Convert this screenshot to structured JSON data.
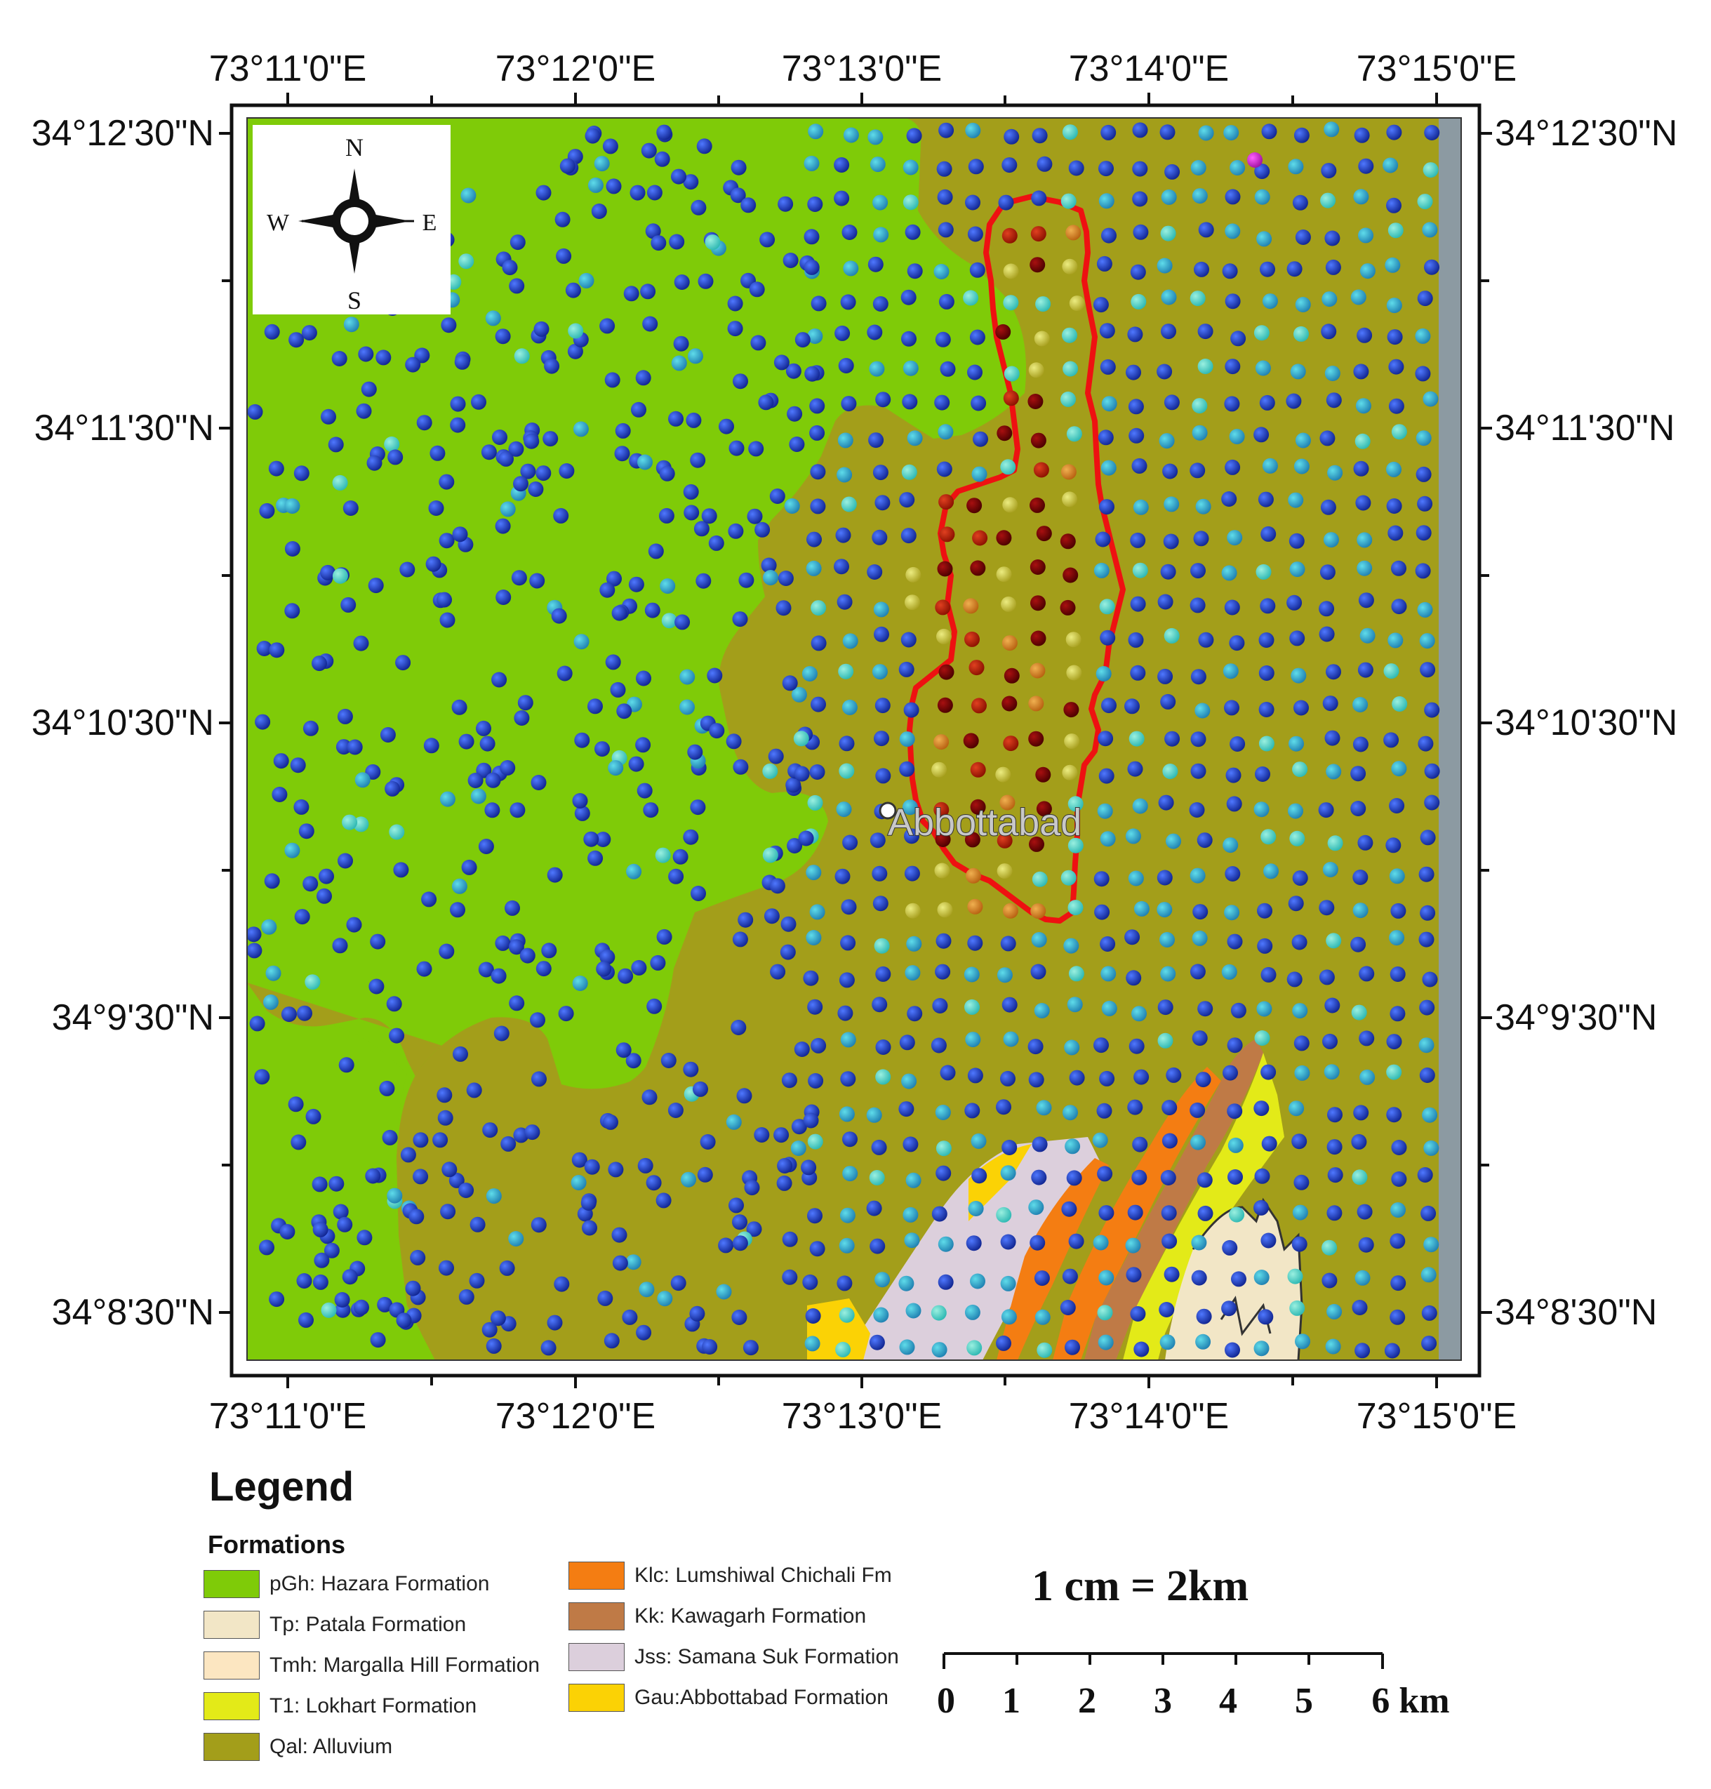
{
  "map": {
    "place_label": "Abbottabad",
    "compass": {
      "n": "N",
      "s": "S",
      "e": "E",
      "w": "W"
    },
    "lon_ticks": [
      "73°11'0\"E",
      "73°12'0\"E",
      "73°13'0\"E",
      "73°14'0\"E",
      "73°15'0\"E"
    ],
    "lat_ticks": [
      "34°12'30\"N",
      "34°11'30\"N",
      "34°10'30\"N",
      "34°9'30\"N",
      "34°8'30\"N"
    ],
    "colors": {
      "hazara": "#7fcb08",
      "alluvium": "#a39e1a",
      "patala": "#f2e6c6",
      "margalla": "#fce6c1",
      "lokhart": "#e3ea18",
      "lumshiwal": "#f47d12",
      "kawagarh": "#bf7a46",
      "samana": "#dccfdc",
      "abbottabad_fm": "#fbd205",
      "boundary": "#ee1111",
      "point_low": "#1a3ec8",
      "point_high": "#7a0000"
    }
  },
  "legend": {
    "title": "Legend",
    "subtitle": "Formations",
    "items": [
      {
        "label": "pGh: Hazara Formation",
        "color": "#7fcb08"
      },
      {
        "label": "Tp: Patala Formation",
        "color": "#f2e6c6"
      },
      {
        "label": "Tmh: Margalla Hill Formation",
        "color": "#fce6c1"
      },
      {
        "label": "T1: Lokhart Formation",
        "color": "#e3ea18"
      },
      {
        "label": "Qal: Alluvium",
        "color": "#a39e1a"
      },
      {
        "label": "Klc: Lumshiwal Chichali Fm",
        "color": "#f47d12"
      },
      {
        "label": "Kk: Kawagarh Formation",
        "color": "#bf7a46"
      },
      {
        "label": "Jss: Samana Suk Formation",
        "color": "#dccfdc"
      },
      {
        "label": "Gau:Abbottabad Formation",
        "color": "#fbd205"
      }
    ]
  },
  "scale": {
    "text": "1 cm = 2km",
    "ticks": [
      "0",
      "1",
      "2",
      "3",
      "4",
      "5",
      "6 km"
    ]
  }
}
